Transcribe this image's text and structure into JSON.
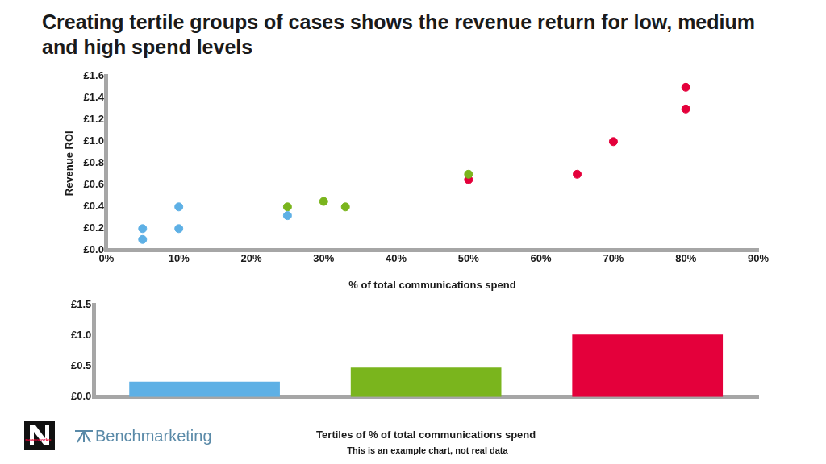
{
  "title": "Creating tertile groups of cases shows the revenue return for low, medium and high spend levels",
  "note": "This is an example chart, not real data",
  "logos": [
    "newsworks",
    "Benchmarketing"
  ],
  "chart_data": [
    {
      "type": "scatter",
      "x_label": "% of total communications spend",
      "y_label": "Revenue ROI",
      "marker": "circle",
      "grid": false,
      "series": [
        {
          "color": "#5eb0e5",
          "x": [
            5,
            5,
            10,
            10,
            25
          ],
          "values": [
            0.2,
            0.1,
            0.4,
            0.2,
            0.32
          ]
        },
        {
          "color": "#7ab51d",
          "x": [
            25,
            30,
            33,
            50
          ],
          "values": [
            0.4,
            0.45,
            0.4,
            0.7
          ]
        },
        {
          "color": "#e4003b",
          "x": [
            50,
            65,
            70,
            80,
            80
          ],
          "values": [
            0.65,
            0.7,
            1.0,
            1.5,
            1.3
          ]
        }
      ],
      "xlim": [
        0,
        90
      ],
      "xticks": [
        {
          "value": 0,
          "label": "0%"
        },
        {
          "value": 10,
          "label": "10%"
        },
        {
          "value": 20,
          "label": "20%"
        },
        {
          "value": 30,
          "label": "30%"
        },
        {
          "value": 40,
          "label": "40%"
        },
        {
          "value": 50,
          "label": "50%"
        },
        {
          "value": 60,
          "label": "60%"
        },
        {
          "value": 70,
          "label": "70%"
        },
        {
          "value": 80,
          "label": "80%"
        },
        {
          "value": 90,
          "label": "90%"
        }
      ],
      "ylim": [
        0,
        1.6
      ],
      "yticks": [
        {
          "value": 0,
          "label": "£0.0"
        },
        {
          "value": 0.2,
          "label": "£0.2"
        },
        {
          "value": 0.4,
          "label": "£0.4"
        },
        {
          "value": 0.6,
          "label": "£0.6"
        },
        {
          "value": 0.8,
          "label": "£0.8"
        },
        {
          "value": 1.0,
          "label": "£1.0"
        },
        {
          "value": 1.2,
          "label": "£1.2"
        },
        {
          "value": 1.4,
          "label": "£1.4"
        },
        {
          "value": 1.6,
          "label": "£1.6"
        }
      ]
    },
    {
      "type": "bar",
      "x_label": "Tertiles of % of total communications spend",
      "grid": false,
      "categories": [
        null,
        null,
        null
      ],
      "values": [
        0.25,
        0.48,
        1.02
      ],
      "colors": [
        "#5eb0e5",
        "#7ab51d",
        "#e4003b"
      ],
      "ylim": [
        0,
        1.5
      ],
      "yticks": [
        {
          "value": 0,
          "label": "£0.0"
        },
        {
          "value": 0.5,
          "label": "£0.5"
        },
        {
          "value": 1.0,
          "label": "£1.0"
        },
        {
          "value": 1.5,
          "label": "£1.5"
        }
      ]
    }
  ]
}
